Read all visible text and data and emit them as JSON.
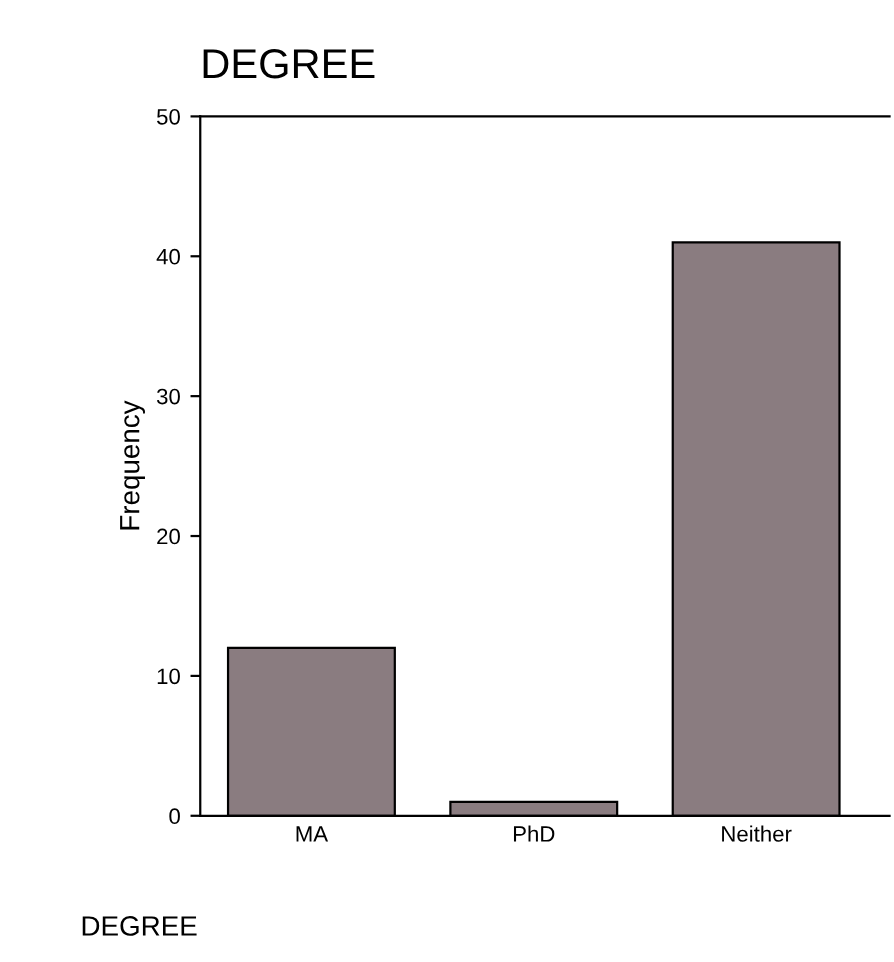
{
  "chart_data": {
    "type": "bar",
    "title": "DEGREE",
    "xlabel": "DEGREE",
    "ylabel": "Frequency",
    "categories": [
      "MA",
      "PhD",
      "Neither"
    ],
    "values": [
      12,
      1,
      41
    ],
    "color": "#8a7c80",
    "ylim": [
      0,
      50
    ],
    "yticks": [
      0,
      10,
      20,
      30,
      40,
      50
    ],
    "grid": false,
    "legend": false
  }
}
